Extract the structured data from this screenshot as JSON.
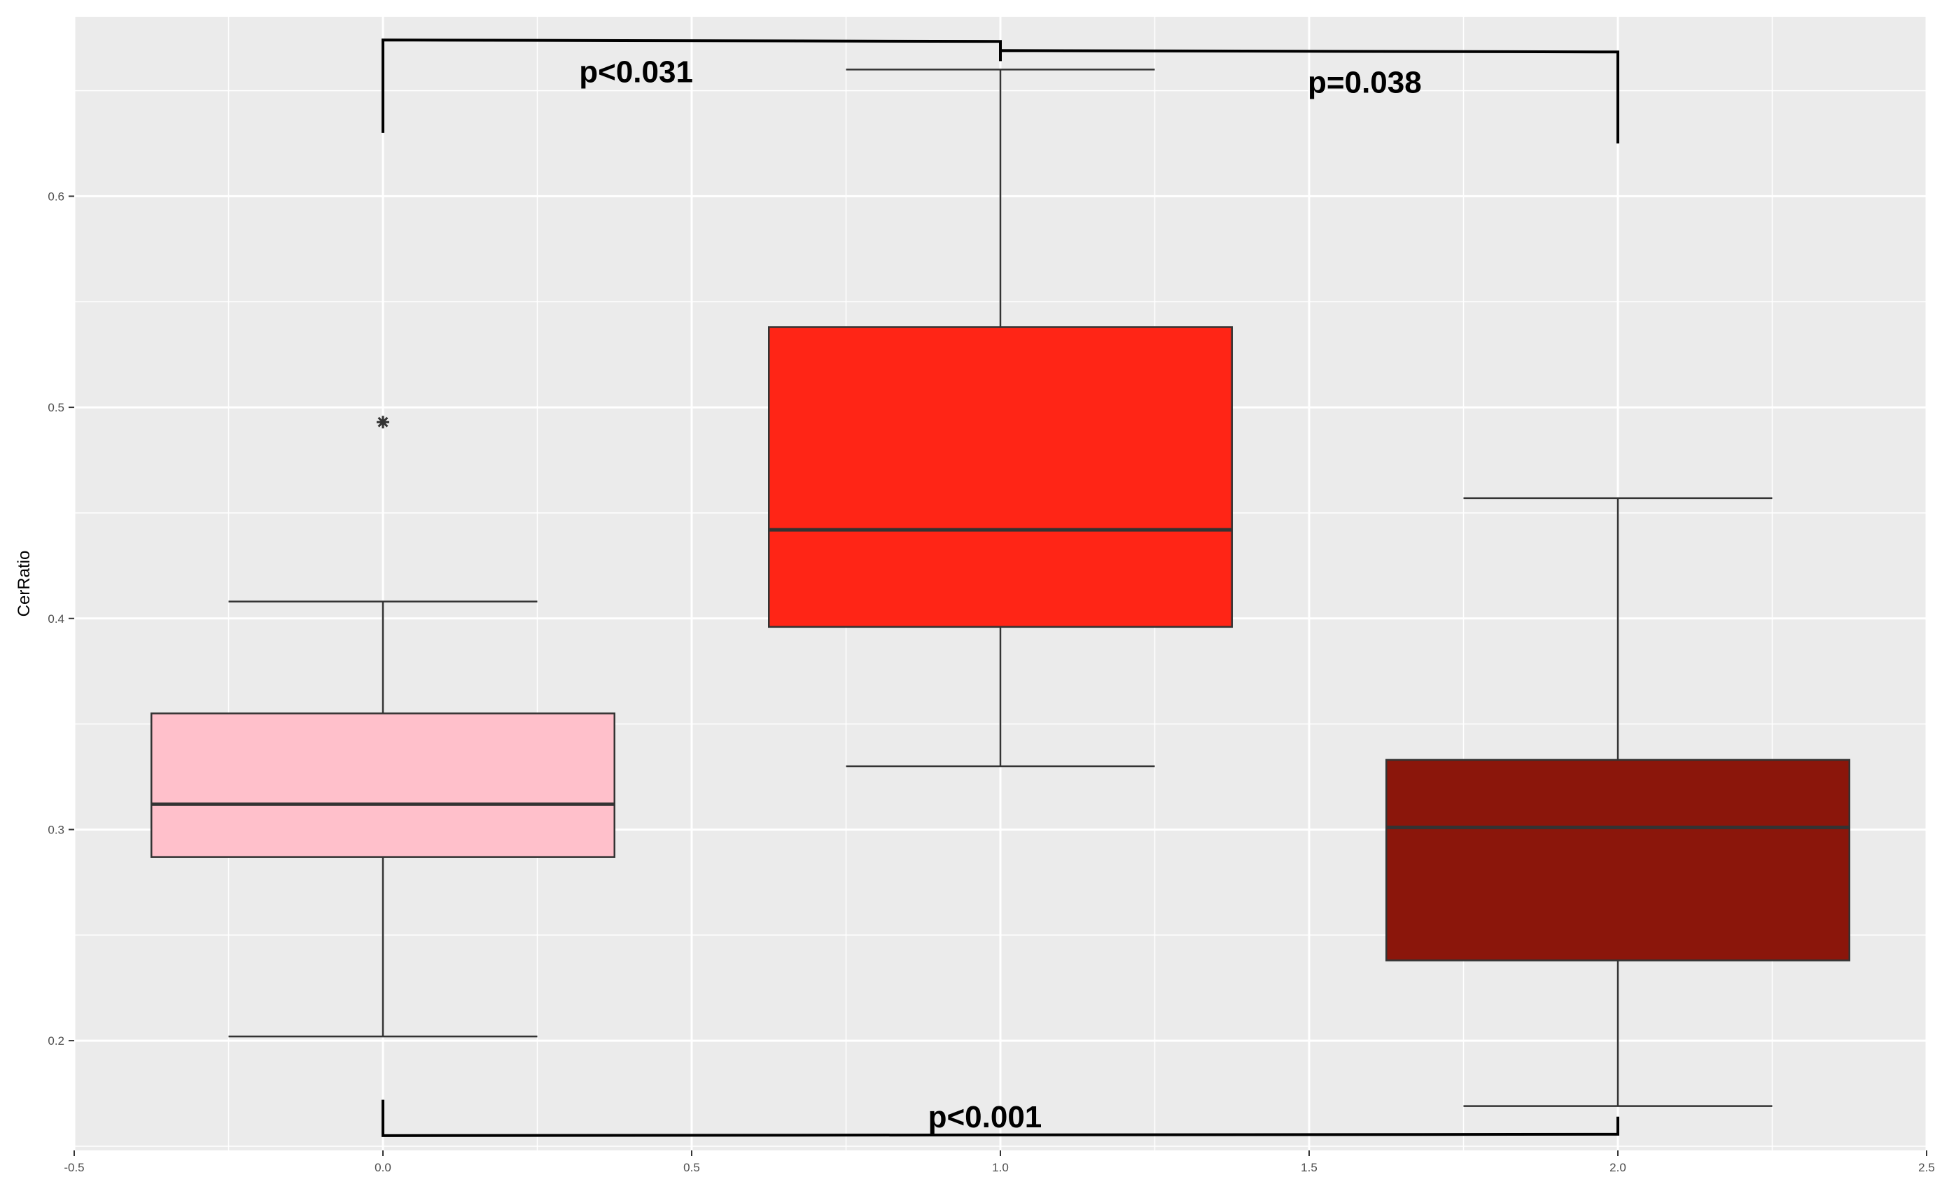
{
  "chart_data": {
    "type": "box",
    "title": "",
    "xlabel": "",
    "ylabel": "CerRatio",
    "xlim": [
      -0.5,
      2.5
    ],
    "ylim": [
      0.148,
      0.685
    ],
    "x_ticks": [
      -0.5,
      0.0,
      0.5,
      1.0,
      1.5,
      2.0,
      2.5
    ],
    "x_tick_labels": [
      "-0.5",
      "0.0",
      "0.5",
      "1.0",
      "1.5",
      "2.0",
      "2.5"
    ],
    "y_ticks": [
      0.2,
      0.3,
      0.4,
      0.5,
      0.6
    ],
    "y_tick_labels": [
      "0.2",
      "0.3",
      "0.4",
      "0.5",
      "0.6"
    ],
    "grid": true,
    "background": "#ebebeb",
    "boxes": [
      {
        "x": 0.0,
        "width": 0.75,
        "whisker_width": 0.5,
        "min": 0.202,
        "q1": 0.287,
        "median": 0.312,
        "q3": 0.355,
        "max": 0.408,
        "color": "#ffc0cb",
        "outliers": [
          0.493
        ]
      },
      {
        "x": 1.0,
        "width": 0.75,
        "whisker_width": 0.5,
        "min": 0.33,
        "q1": 0.396,
        "median": 0.442,
        "q3": 0.538,
        "max": 0.66,
        "color": "#ff2516",
        "outliers": []
      },
      {
        "x": 2.0,
        "width": 0.75,
        "whisker_width": 0.5,
        "min": 0.169,
        "q1": 0.238,
        "median": 0.301,
        "q3": 0.333,
        "max": 0.457,
        "color": "#8b160b",
        "outliers": []
      }
    ],
    "annotations": [
      {
        "text": "p<0.031",
        "from": 0.0,
        "to": 1.0,
        "side": "top",
        "bracket_y": 0.674,
        "from_end": 0.63,
        "to_end": 0.666,
        "label_x": 0.41,
        "label_y": 0.654
      },
      {
        "text": "p=0.038",
        "from": 1.0,
        "to": 2.0,
        "side": "top",
        "bracket_y": 0.669,
        "from_end": 0.664,
        "to_end": 0.625,
        "label_x": 1.59,
        "label_y": 0.649
      },
      {
        "text": "p<0.001",
        "from": 0.0,
        "to": 2.0,
        "side": "bottom",
        "bracket_y": 0.155,
        "from_end": 0.172,
        "to_end": 0.164,
        "label_x": 0.975,
        "label_y": 0.159
      }
    ]
  }
}
